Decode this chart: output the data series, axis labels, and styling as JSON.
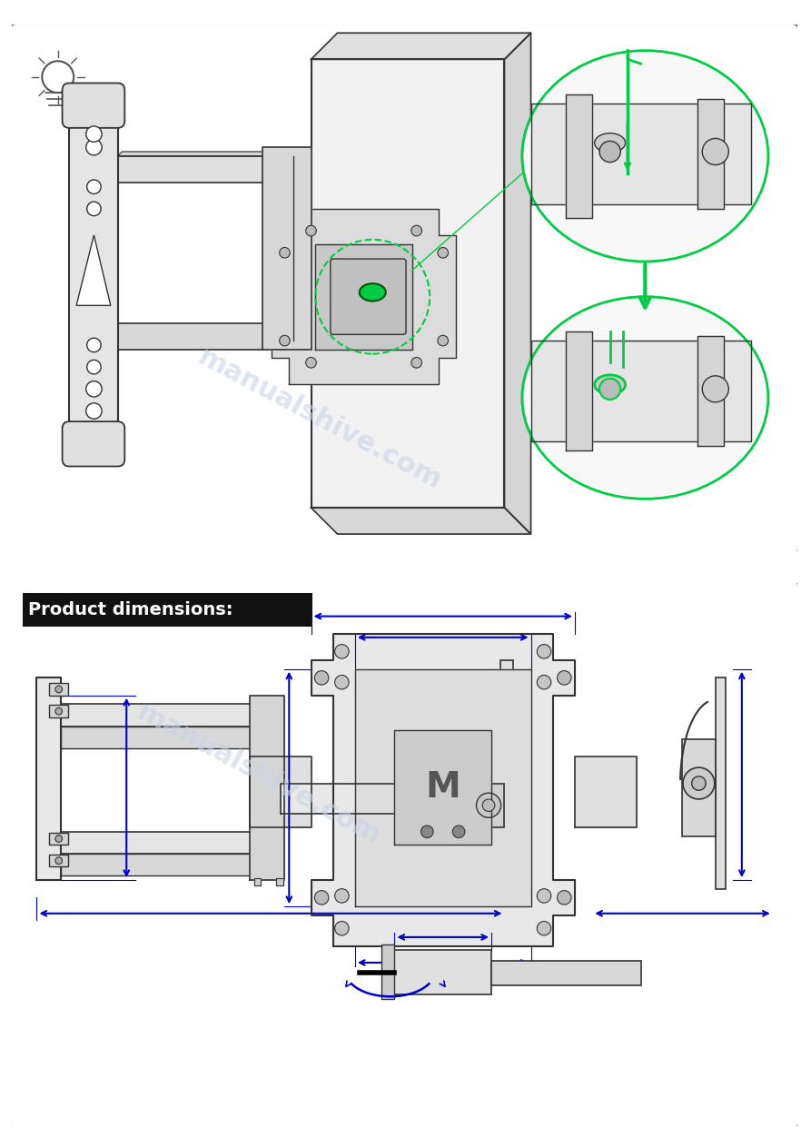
{
  "page_bg": "#ffffff",
  "border_color": "#444444",
  "header_bg": "#111111",
  "header_text": "Product dimensions:",
  "header_text_color": "#ffffff",
  "header_fontsize": 14,
  "watermark_text": "manualshive.com",
  "watermark_color": "#c8d4e8",
  "watermark_alpha": 0.6,
  "green_color": "#00cc44",
  "blue_color": "#0000cc",
  "draw_color": "#333333",
  "light_fill": "#f5f5f5",
  "med_fill": "#e8e8e8",
  "dark_fill": "#cccccc"
}
